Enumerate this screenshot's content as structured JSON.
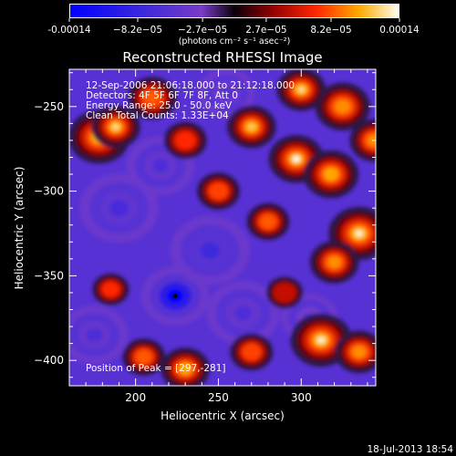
{
  "chart_data": {
    "type": "heatmap",
    "title": "Reconstructed RHESSI Image",
    "xlabel": "Heliocentric X (arcsec)",
    "ylabel": "Heliocentric Y (arcsec)",
    "xlim": [
      160,
      345
    ],
    "ylim": [
      -415,
      -228
    ],
    "x_ticks": [
      200,
      250,
      300
    ],
    "y_ticks": [
      -250,
      -300,
      -350,
      -400
    ],
    "colorbar": {
      "range": [
        -0.00014,
        0.00014
      ],
      "tick_labels": [
        "-0.00014",
        "−8.2e−05",
        "−2.7e−05",
        "2.7e−05",
        "8.2e−05",
        "0.00014"
      ],
      "units_label": "(photons cm⁻² s⁻¹ asec⁻²)"
    },
    "annotations": [
      "12-Sep-2006 21:06:18.000 to 21:12:18.000",
      "Detectors: 4F 5F 6F 7F 8F, Att 0",
      "Energy Range: 25.0 - 50.0 keV",
      "Clean     Total Counts: 1.33E+04"
    ],
    "peak_label": "Position of Peak = [297,-281]",
    "peak": {
      "x": 297,
      "y": -281
    },
    "marker": {
      "x": 224,
      "y": -362
    },
    "hot_spots": [
      {
        "x": 178,
        "y": -268,
        "v": 1.0,
        "s": 10
      },
      {
        "x": 188,
        "y": -262,
        "v": 0.9,
        "s": 8
      },
      {
        "x": 297,
        "y": -281,
        "v": 1.0,
        "s": 9
      },
      {
        "x": 270,
        "y": -262,
        "v": 0.85,
        "s": 8
      },
      {
        "x": 325,
        "y": -250,
        "v": 0.7,
        "s": 9
      },
      {
        "x": 300,
        "y": -240,
        "v": 0.9,
        "s": 8
      },
      {
        "x": 210,
        "y": -245,
        "v": 0.6,
        "s": 8
      },
      {
        "x": 318,
        "y": -290,
        "v": 0.75,
        "s": 9
      },
      {
        "x": 335,
        "y": -325,
        "v": 0.95,
        "s": 10
      },
      {
        "x": 320,
        "y": -342,
        "v": 0.7,
        "s": 8
      },
      {
        "x": 280,
        "y": -318,
        "v": 0.6,
        "s": 7
      },
      {
        "x": 312,
        "y": -388,
        "v": 0.95,
        "s": 10
      },
      {
        "x": 335,
        "y": -395,
        "v": 0.7,
        "s": 8
      },
      {
        "x": 230,
        "y": -405,
        "v": 0.75,
        "s": 8
      },
      {
        "x": 205,
        "y": -398,
        "v": 0.6,
        "s": 7
      },
      {
        "x": 270,
        "y": -395,
        "v": 0.55,
        "s": 7
      },
      {
        "x": 185,
        "y": -358,
        "v": 0.5,
        "s": 6
      },
      {
        "x": 250,
        "y": -300,
        "v": 0.55,
        "s": 7
      },
      {
        "x": 230,
        "y": -270,
        "v": 0.5,
        "s": 7
      },
      {
        "x": 344,
        "y": -270,
        "v": 0.7,
        "s": 8
      },
      {
        "x": 290,
        "y": -360,
        "v": 0.35,
        "s": 6
      }
    ],
    "cold_spots": [
      {
        "x": 224,
        "y": -362,
        "v": -1.0,
        "s": 12
      },
      {
        "x": 245,
        "y": -335,
        "v": -0.55,
        "s": 14
      },
      {
        "x": 190,
        "y": -310,
        "v": -0.5,
        "s": 14
      },
      {
        "x": 215,
        "y": -285,
        "v": -0.45,
        "s": 12
      },
      {
        "x": 265,
        "y": -372,
        "v": -0.45,
        "s": 13
      },
      {
        "x": 175,
        "y": -385,
        "v": -0.45,
        "s": 12
      },
      {
        "x": 255,
        "y": -242,
        "v": -0.4,
        "s": 10
      },
      {
        "x": 305,
        "y": -375,
        "v": -0.35,
        "s": 10
      }
    ]
  },
  "footer": {
    "timestamp": "18-Jul-2013 18:54"
  },
  "colors": {
    "background": "#000000",
    "text": "#ffffff"
  }
}
